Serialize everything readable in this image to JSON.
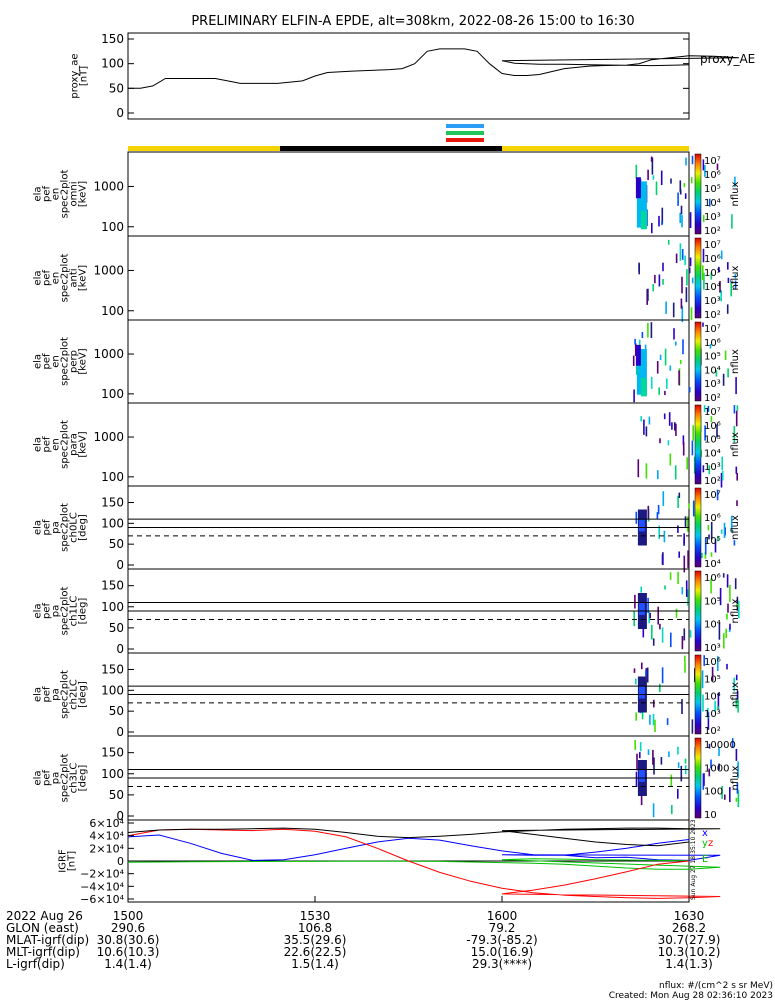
{
  "title": "PRELIMINARY ELFIN-A EPDE, alt=308km, 2022-08-26 15:00 to 16:30",
  "colors": {
    "sunlight_bar": "#f5d400",
    "shadow_bar": "#000000",
    "fast_survey_blue": "#2a9df4",
    "fast_survey_green": "#22c45a",
    "fast_survey_red": "#e8180c",
    "bx": "#0000ff",
    "by": "#00c000",
    "bz": "#ff0000",
    "btotal": "#000000"
  },
  "chart_data": [
    {
      "type": "line",
      "panel": "proxy_ae",
      "ylabel": [
        "proxy_ae",
        "[nT]"
      ],
      "ylim": [
        0,
        150
      ],
      "yticks": [
        "150",
        "100",
        "50",
        "0"
      ],
      "legend": "proxy_AE",
      "x": [
        1500,
        1502,
        1504,
        1506,
        1510,
        1514,
        1516,
        1518,
        1520,
        1524,
        1528,
        1530,
        1532,
        1536,
        1540,
        1542,
        1544,
        1546,
        1548,
        1550,
        1552,
        1554,
        1556,
        1558,
        1560,
        1562,
        1564,
        1566,
        1570,
        1574,
        1576,
        1580,
        1582,
        1584,
        1590,
        1594,
        1598,
        1600,
        1602,
        1606,
        1610,
        1614,
        1618,
        1624,
        1628,
        1630
      ],
      "values": [
        50,
        50,
        55,
        70,
        70,
        70,
        65,
        60,
        60,
        60,
        65,
        75,
        82,
        85,
        87,
        88,
        90,
        100,
        125,
        130,
        130,
        130,
        125,
        100,
        80,
        76,
        76,
        78,
        90,
        95,
        96,
        97,
        100,
        108,
        116,
        115,
        112,
        106,
        101,
        99,
        99,
        98,
        97,
        96,
        97,
        98
      ]
    },
    {
      "type": "heatmap",
      "panel": "ela_pef_en_spec2plot_omni",
      "ylabel": [
        "ela",
        "pef",
        "en",
        "spec2plot",
        "omni",
        "[keV]"
      ],
      "yticks": [
        "1000",
        "100"
      ],
      "colorbar": {
        "label": "nflux",
        "ticks": [
          "10⁷",
          "10⁶",
          "10⁵",
          "10⁴",
          "10³",
          "10²"
        ]
      },
      "active_interval": [
        1581,
        1598
      ]
    },
    {
      "type": "heatmap",
      "panel": "ela_pef_en_spec2plot_anti",
      "ylabel": [
        "ela",
        "pef",
        "en",
        "spec2plot",
        "anti",
        "[keV]"
      ],
      "yticks": [
        "1000",
        "100"
      ],
      "colorbar": {
        "label": "nflux",
        "ticks": [
          "10⁷",
          "10⁶",
          "10⁵",
          "10⁴",
          "10³",
          "10²"
        ]
      },
      "active_interval": [
        1581,
        1598
      ]
    },
    {
      "type": "heatmap",
      "panel": "ela_pef_en_spec2plot_perp",
      "ylabel": [
        "ela",
        "pef",
        "en",
        "spec2plot",
        "perp",
        "[keV]"
      ],
      "yticks": [
        "1000",
        "100"
      ],
      "colorbar": {
        "label": "nflux",
        "ticks": [
          "10⁷",
          "10⁶",
          "10⁵",
          "10⁴",
          "10³",
          "10²"
        ]
      },
      "active_interval": [
        1581,
        1598
      ]
    },
    {
      "type": "heatmap",
      "panel": "ela_pef_en_spec2plot_para",
      "ylabel": [
        "ela",
        "pef",
        "en",
        "spec2plot",
        "para",
        "[keV]"
      ],
      "yticks": [
        "1000",
        "100"
      ],
      "colorbar": {
        "label": "nflux",
        "ticks": [
          "10⁷",
          "10⁶",
          "10⁵",
          "10⁴",
          "10³",
          "10²"
        ]
      },
      "active_interval": [
        1581,
        1598
      ]
    },
    {
      "type": "heatmap",
      "panel": "ela_pef_pa_spec2plot_ch0LC",
      "ylabel": [
        "ela",
        "pef",
        "pa",
        "spec2plot",
        "ch0LC",
        "[deg]"
      ],
      "ylim": [
        0,
        180
      ],
      "yticks": [
        "150",
        "100",
        "50",
        "0"
      ],
      "colorbar": {
        "label": "nflux",
        "ticks": [
          "10⁷",
          "10⁶",
          "10⁵",
          "10⁴"
        ]
      },
      "active_interval": [
        1581,
        1598
      ]
    },
    {
      "type": "heatmap",
      "panel": "ela_pef_pa_spec2plot_ch1LC",
      "ylabel": [
        "ela",
        "pef",
        "pa",
        "spec2plot",
        "ch1LC",
        "[deg]"
      ],
      "ylim": [
        0,
        180
      ],
      "yticks": [
        "150",
        "100",
        "50",
        "0"
      ],
      "colorbar": {
        "label": "nflux",
        "ticks": [
          "10⁶",
          "10⁵",
          "10⁴",
          "10³"
        ]
      },
      "active_interval": [
        1581,
        1598
      ]
    },
    {
      "type": "heatmap",
      "panel": "ela_pef_pa_spec2plot_ch2LC",
      "ylabel": [
        "ela",
        "pef",
        "pa",
        "spec2plot",
        "ch2LC",
        "[deg]"
      ],
      "ylim": [
        0,
        180
      ],
      "yticks": [
        "150",
        "100",
        "50",
        "0"
      ],
      "colorbar": {
        "label": "nflux",
        "ticks": [
          "10⁶",
          "10⁵",
          "10⁴",
          "10³",
          "10²"
        ]
      },
      "active_interval": [
        1581,
        1598
      ]
    },
    {
      "type": "heatmap",
      "panel": "ela_pef_pa_spec2plot_ch3LC",
      "ylabel": [
        "ela",
        "pef",
        "pa",
        "spec2plot",
        "ch3LC",
        "[deg]"
      ],
      "ylim": [
        0,
        180
      ],
      "yticks": [
        "150",
        "100",
        "50",
        "0"
      ],
      "colorbar": {
        "label": "nflux",
        "ticks": [
          "10000",
          "1000",
          "100",
          "10"
        ]
      },
      "active_interval": [
        1581,
        1598
      ]
    },
    {
      "type": "line",
      "panel": "bgrf",
      "ylabel": [
        "IGRF",
        "[nT]"
      ],
      "ylim": [
        -60000,
        60000
      ],
      "yticks": [
        "6×10⁴",
        "4×10⁴",
        "2×10⁴",
        "0",
        "−2×10⁴",
        "−4×10⁴",
        "−6×10⁴"
      ],
      "legend": [
        "x",
        "y",
        "z",
        "E"
      ],
      "side_note": "Sun Aug 27 18:35:10 2023",
      "x": [
        1500,
        1505,
        1510,
        1515,
        1520,
        1525,
        1530,
        1535,
        1540,
        1545,
        1550,
        1555,
        1560,
        1565,
        1570,
        1575,
        1580,
        1585,
        1590,
        1595,
        1600,
        1605,
        1610,
        1615,
        1620,
        1625,
        1630
      ],
      "series": [
        {
          "name": "x",
          "values": [
            38000,
            41000,
            28000,
            12000,
            1000,
            2000,
            10000,
            20000,
            30000,
            36000,
            33000,
            24000,
            16000,
            10000,
            9000,
            5000,
            6000,
            2000,
            1000,
            9000,
            10000,
            9000,
            9000,
            14000,
            20000,
            28000,
            34000
          ]
        },
        {
          "name": "y",
          "values": [
            -2000,
            -1500,
            -1200,
            -1000,
            -800,
            -700,
            -600,
            -500,
            -400,
            -500,
            -700,
            -1500,
            -2500,
            -3500,
            -5000,
            -8000,
            -11000,
            -13000,
            -13000,
            -10000,
            2000,
            3500,
            3000,
            2000,
            1500,
            1000,
            500
          ]
        },
        {
          "name": "z",
          "values": [
            40000,
            49000,
            50000,
            49000,
            48000,
            50000,
            47000,
            38000,
            20000,
            0,
            -18000,
            -32000,
            -43000,
            -50000,
            -54000,
            -56000,
            -58000,
            -59000,
            -58000,
            -56000,
            -52000,
            -46000,
            -38000,
            -28000,
            -17000,
            -5000,
            0
          ]
        },
        {
          "name": "E",
          "values": [
            45000,
            49000,
            50000,
            50000,
            51000,
            52000,
            50000,
            45000,
            39000,
            37000,
            39000,
            42000,
            46000,
            48000,
            50000,
            51000,
            52000,
            52000,
            51000,
            51000,
            48000,
            42000,
            36000,
            30000,
            26000,
            24000,
            30000
          ]
        }
      ]
    }
  ],
  "xaxis": {
    "ticks": [
      "1500",
      "1530",
      "1600",
      "1630"
    ],
    "rows": [
      {
        "label": "2022 Aug 26",
        "values": [
          "1500",
          "1530",
          "1600",
          "1630"
        ]
      },
      {
        "label": "GLON (east)",
        "values": [
          "290.6",
          "106.8",
          "79.2",
          "268.2"
        ]
      },
      {
        "label": "MLAT-igrf(dip)",
        "values": [
          "30.8(30.6)",
          "35.5(29.6)",
          "-79.3(-85.2)",
          "30.7(27.9)"
        ]
      },
      {
        "label": "MLT-igrf(dip)",
        "values": [
          "10.6(10.3)",
          "22.6(22.5)",
          "15.0(16.9)",
          "10.3(10.2)"
        ]
      },
      {
        "label": "L-igrf(dip)",
        "values": [
          "1.4(1.4)",
          "1.5(1.4)",
          "29.3(****)",
          "1.4(1.3)"
        ]
      }
    ]
  },
  "footer": {
    "units": "nflux: #/(cm^2 s sr MeV)",
    "created": "Created: Mon Aug 28 02:36:10 2023"
  }
}
